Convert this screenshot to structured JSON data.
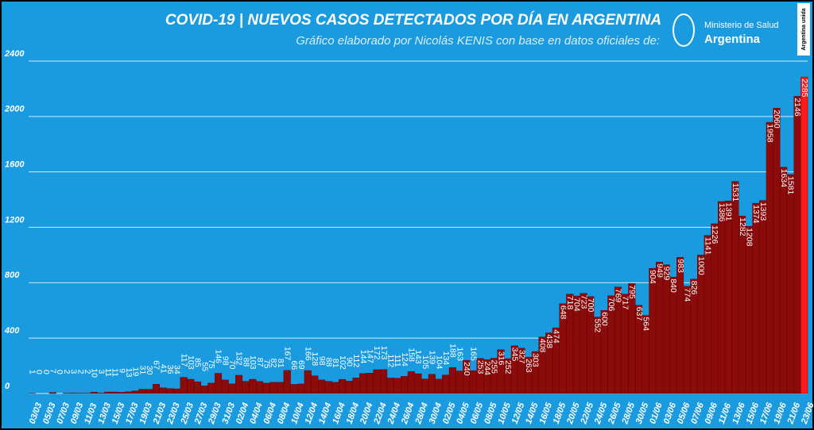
{
  "chart_data": {
    "type": "bar",
    "title": "COVID-19  |  NUEVOS CASOS DETECTADOS POR DÍA EN ARGENTINA",
    "subtitle": "Gráfico elaborado por Nicolás KENIS con base en datos oficiales de:",
    "logo": {
      "ministry": "Ministerio de Salud",
      "country": "Argentina",
      "badge": "Argentina unida"
    },
    "categories": [
      "03/03",
      null,
      "05/03",
      null,
      "07/03",
      null,
      "09/03",
      null,
      "11/03",
      null,
      "13/03",
      null,
      "15/03",
      null,
      "17/03",
      null,
      "19/03",
      null,
      "21/03",
      null,
      "23/03",
      null,
      "25/03",
      null,
      "27/03",
      null,
      "29/03",
      null,
      "31/03",
      null,
      "02/04",
      null,
      "04/04",
      null,
      "06/04",
      null,
      "08/04",
      null,
      "10/04",
      null,
      "12/04",
      null,
      "14/04",
      null,
      "16/04",
      null,
      "18/04",
      null,
      "20/04",
      null,
      "22/04",
      null,
      "24/04",
      null,
      "26/04",
      null,
      "28/04",
      null,
      "30/04",
      null,
      "02/05",
      null,
      "04/05",
      null,
      "06/05",
      null,
      "08/05",
      null,
      "10/05",
      null,
      "12/05",
      null,
      "14/05",
      null,
      "16/05",
      null,
      "18/05",
      null,
      "20/05",
      null,
      "22/05",
      null,
      "24/05",
      null,
      "26/05",
      null,
      "28/05",
      null,
      "30/05",
      null,
      "01/06",
      null,
      "03/06",
      null,
      "05/06",
      null,
      "07/06",
      null,
      "09/06",
      null,
      "11/06",
      null,
      "13/06",
      null,
      "15/06",
      null,
      "17/06",
      null,
      "19/06",
      null,
      "21/06",
      null,
      "23/06"
    ],
    "values": [
      1,
      0,
      0,
      7,
      0,
      2,
      3,
      2,
      2,
      10,
      3,
      11,
      11,
      9,
      13,
      19,
      31,
      30,
      67,
      41,
      36,
      34,
      117,
      103,
      85,
      55,
      75,
      146,
      98,
      70,
      132,
      88,
      103,
      87,
      75,
      82,
      81,
      167,
      66,
      69,
      166,
      128,
      98,
      88,
      81,
      102,
      90,
      112,
      144,
      147,
      172,
      173,
      112,
      111,
      124,
      158,
      143,
      105,
      139,
      104,
      134,
      188,
      163,
      240,
      165,
      253,
      244,
      255,
      316,
      252,
      345,
      327,
      263,
      303,
      408,
      438,
      474,
      648,
      718,
      704,
      723,
      700,
      552,
      600,
      706,
      769,
      717,
      795,
      637,
      564,
      904,
      949,
      929,
      840,
      983,
      774,
      826,
      1000,
      1141,
      1226,
      1386,
      1391,
      1531,
      1282,
      1208,
      1374,
      1393,
      1958,
      2060,
      1634,
      1581,
      2146,
      2285
    ],
    "color": "#8b0a0a",
    "highlight_color": "#ff1a1a",
    "ylim": [
      0,
      2400
    ],
    "yticks": [
      0,
      400,
      800,
      1200,
      1600,
      2000,
      2400
    ],
    "grid": true
  }
}
